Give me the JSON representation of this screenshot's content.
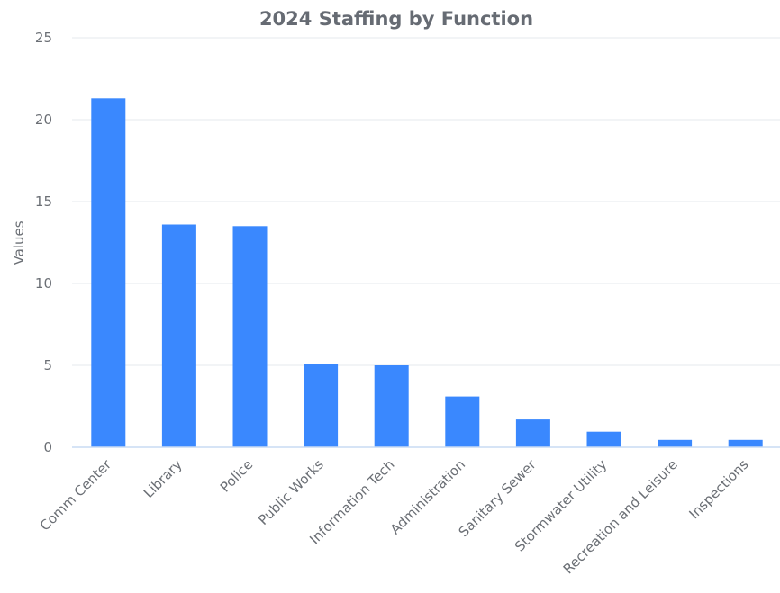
{
  "chart_data": {
    "type": "bar",
    "title": "2024 Staffing by Function",
    "xlabel": "",
    "ylabel": "Values",
    "categories": [
      "Comm Center",
      "Library",
      "Police",
      "Public Works",
      "Information Tech",
      "Administration",
      "Sanitary Sewer",
      "Stormwater Utility",
      "Recreation and Leisure",
      "Inspections"
    ],
    "values": [
      21.3,
      13.6,
      13.5,
      5.1,
      5.0,
      3.1,
      1.7,
      0.95,
      0.45,
      0.45
    ],
    "ylim": [
      0,
      25
    ],
    "yticks": [
      0,
      5,
      10,
      15,
      20,
      25
    ],
    "grid": true,
    "legend": "none",
    "colors": {
      "bar": "#3a88fe",
      "grid": "#e6e8ec",
      "baseline": "#c9dbf3",
      "text": "#6b6f75",
      "title": "#666b73"
    }
  }
}
